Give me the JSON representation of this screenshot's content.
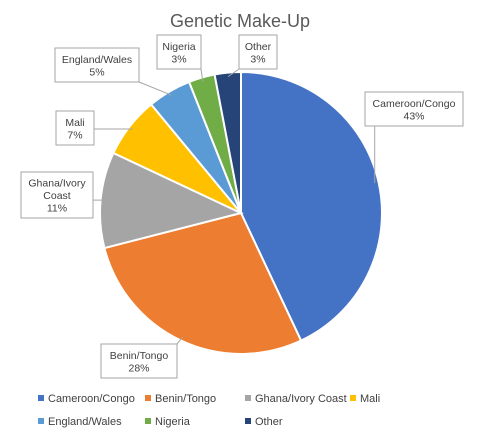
{
  "chart_data": {
    "type": "pie",
    "title": "Genetic Make-Up",
    "categories": [
      "Cameroon/Congo",
      "Benin/Tongo",
      "Ghana/Ivory Coast",
      "Mali",
      "England/Wales",
      "Nigeria",
      "Other"
    ],
    "values": [
      43,
      28,
      11,
      7,
      5,
      3,
      3
    ],
    "labels": [
      [
        "Cameroon/Congo",
        "43%"
      ],
      [
        "Benin/Tongo",
        "28%"
      ],
      [
        "Ghana/Ivory",
        "Coast",
        "11%"
      ],
      [
        "Mali",
        "7%"
      ],
      [
        "England/Wales",
        "5%"
      ],
      [
        "Nigeria",
        "3%"
      ],
      [
        "Other",
        "3%"
      ]
    ],
    "colors": [
      "#4472c4",
      "#ed7d31",
      "#a5a5a5",
      "#ffc000",
      "#5b9bd5",
      "#70ad47",
      "#264478"
    ],
    "start_angle_deg": 0,
    "direction": "clockwise",
    "legend_position": "bottom",
    "legend_rows": [
      [
        "Cameroon/Congo",
        "Benin/Tongo",
        "Ghana/Ivory Coast",
        "Mali"
      ],
      [
        "England/Wales",
        "Nigeria",
        "Other"
      ]
    ]
  }
}
